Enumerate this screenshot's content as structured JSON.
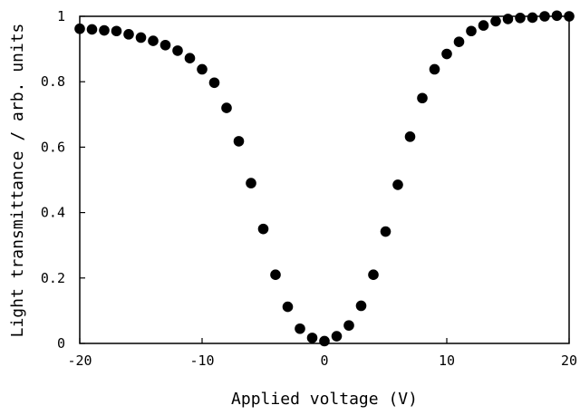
{
  "chart_data": {
    "type": "scatter",
    "title": "",
    "xlabel": "Applied voltage (V)",
    "ylabel": "Light transmittance / arb. units",
    "xlim": [
      -20,
      20
    ],
    "ylim": [
      0,
      1
    ],
    "x_ticks": [
      -20,
      -10,
      0,
      10,
      20
    ],
    "x_tick_labels": [
      "-20",
      "-10",
      "0",
      "10",
      "20"
    ],
    "y_ticks": [
      0,
      0.2,
      0.4,
      0.6,
      0.8,
      1
    ],
    "y_tick_labels": [
      "0",
      "0.2",
      "0.4",
      "0.6",
      "0.8",
      "1"
    ],
    "grid": false,
    "marker_color": "#000000",
    "series": [
      {
        "x": [
          -20,
          -19,
          -18,
          -17,
          -16,
          -15,
          -14,
          -13,
          -12,
          -11,
          -10,
          -9,
          -8,
          -7,
          -6,
          -5,
          -4,
          -3,
          -2,
          -1,
          0,
          1,
          2,
          3,
          4,
          5,
          6,
          7,
          8,
          9,
          10,
          11,
          12,
          13,
          14,
          15,
          16,
          17,
          18,
          19,
          20
        ],
        "y": [
          0.962,
          0.96,
          0.957,
          0.955,
          0.945,
          0.935,
          0.925,
          0.912,
          0.895,
          0.872,
          0.838,
          0.797,
          0.72,
          0.618,
          0.49,
          0.35,
          0.21,
          0.112,
          0.045,
          0.017,
          0.007,
          0.022,
          0.055,
          0.115,
          0.21,
          0.342,
          0.485,
          0.632,
          0.75,
          0.838,
          0.885,
          0.922,
          0.955,
          0.972,
          0.985,
          0.992,
          0.995,
          0.996,
          1.0,
          1.002,
          1.0
        ]
      }
    ]
  }
}
